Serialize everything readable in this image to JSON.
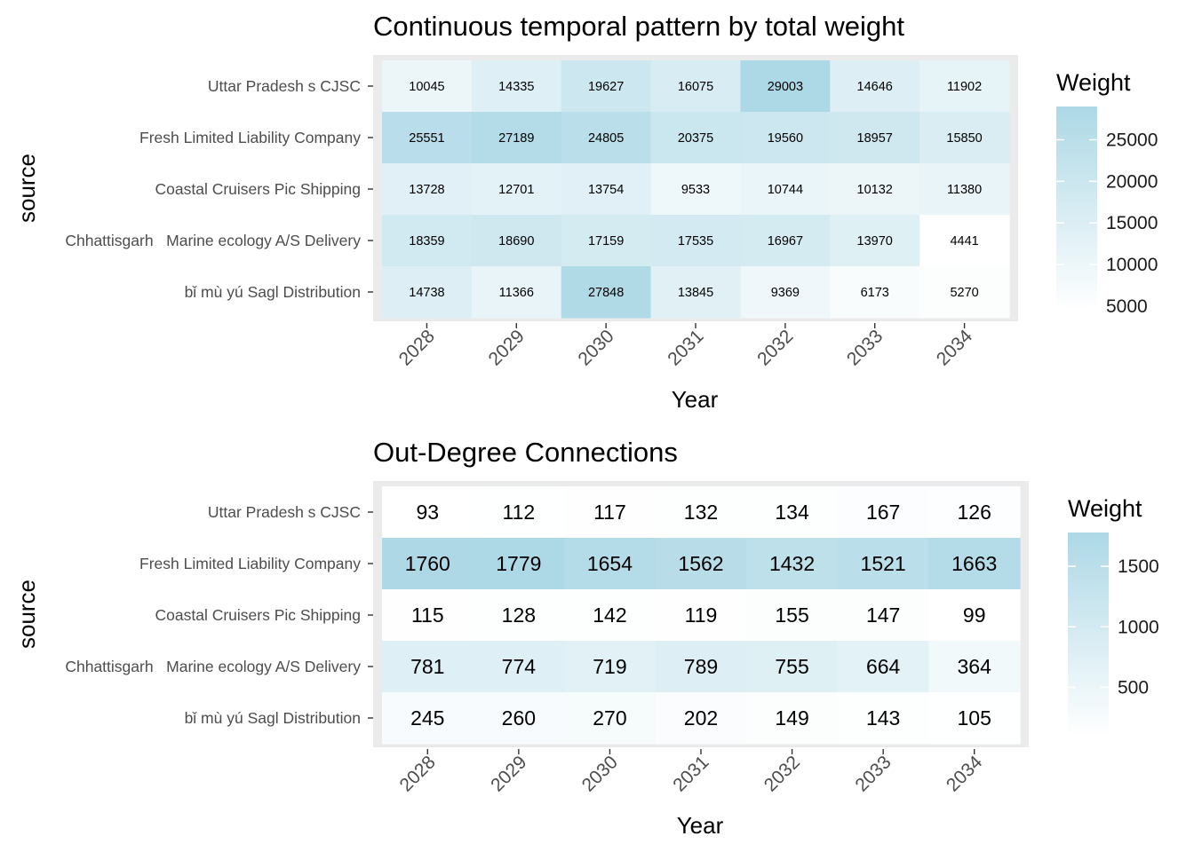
{
  "chart_data": [
    {
      "type": "heatmap",
      "title": "Continuous temporal pattern by total weight",
      "xlabel": "Year",
      "ylabel": "source",
      "x": [
        "2028",
        "2029",
        "2030",
        "2031",
        "2032",
        "2033",
        "2034"
      ],
      "y": [
        "Uttar Pradesh s CJSC",
        "Fresh Limited Liability Company",
        "Coastal Cruisers Pic Shipping",
        "Chhattisgarh   Marine ecology A/S Delivery",
        "bǐ mù yú Sagl Distribution"
      ],
      "values": [
        [
          10045,
          14335,
          19627,
          16075,
          29003,
          14646,
          11902
        ],
        [
          25551,
          27189,
          24805,
          20375,
          19560,
          18957,
          15850
        ],
        [
          13728,
          12701,
          13754,
          9533,
          10744,
          10132,
          11380
        ],
        [
          18359,
          18690,
          17159,
          17535,
          16967,
          13970,
          4441
        ],
        [
          14738,
          11366,
          27848,
          13845,
          9369,
          6173,
          5270
        ]
      ],
      "legend": {
        "title": "Weight",
        "ticks": [
          5000,
          10000,
          15000,
          20000,
          25000
        ],
        "tick_labels": [
          "5000",
          "10000",
          "15000",
          "20000",
          "25000"
        ],
        "placement": "right"
      },
      "color_range": [
        4441,
        29003
      ],
      "colors": {
        "low": "#ffffff",
        "high": "#add8e6"
      },
      "grid": true
    },
    {
      "type": "heatmap",
      "title": "Out-Degree Connections",
      "xlabel": "Year",
      "ylabel": "source",
      "x": [
        "2028",
        "2029",
        "2030",
        "2031",
        "2032",
        "2033",
        "2034"
      ],
      "y": [
        "Uttar Pradesh s CJSC",
        "Fresh Limited Liability Company",
        "Coastal Cruisers Pic Shipping",
        "Chhattisgarh   Marine ecology A/S Delivery",
        "bǐ mù yú Sagl Distribution"
      ],
      "values": [
        [
          93,
          112,
          117,
          132,
          134,
          167,
          126
        ],
        [
          1760,
          1779,
          1654,
          1562,
          1432,
          1521,
          1663
        ],
        [
          115,
          128,
          142,
          119,
          155,
          147,
          99
        ],
        [
          781,
          774,
          719,
          789,
          755,
          664,
          364
        ],
        [
          245,
          260,
          270,
          202,
          149,
          143,
          105
        ]
      ],
      "legend": {
        "title": "Weight",
        "ticks": [
          500,
          1000,
          1500
        ],
        "tick_labels": [
          "500",
          "1000",
          "1500"
        ],
        "placement": "right"
      },
      "color_range": [
        93,
        1779
      ],
      "colors": {
        "low": "#ffffff",
        "high": "#add8e6"
      },
      "grid": true
    }
  ]
}
